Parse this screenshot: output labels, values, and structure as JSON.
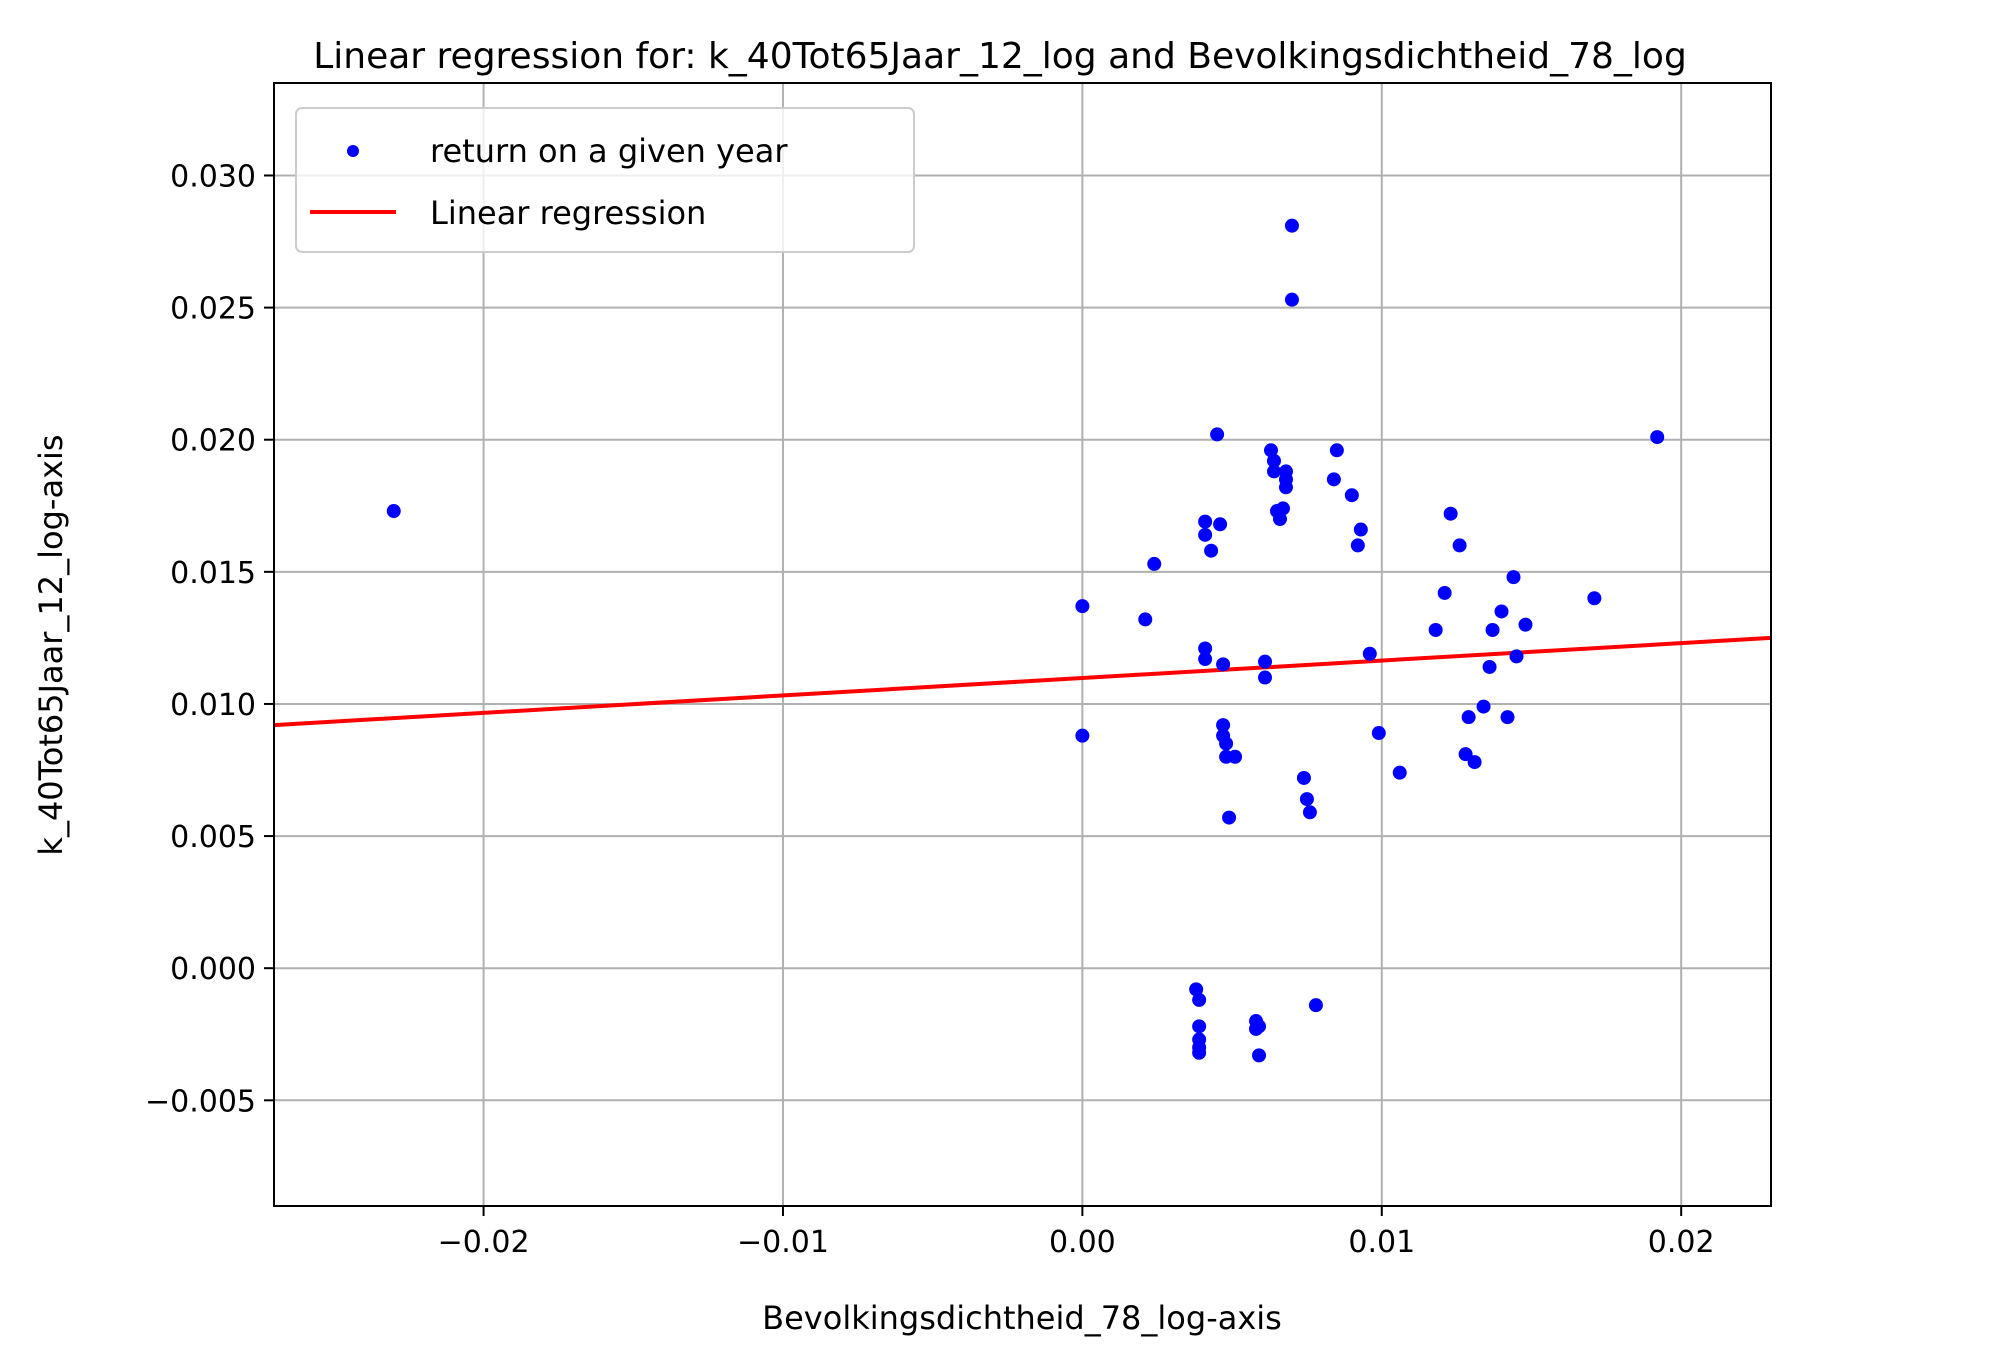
{
  "chart_data": {
    "type": "scatter",
    "title": "Linear regression for: k_40Tot65Jaar_12_log and Bevolkingsdichtheid_78_log",
    "xlabel": "Bevolkingsdichtheid_78_log-axis",
    "ylabel": "k_40Tot65Jaar_12_log-axis",
    "xlim": [
      -0.027,
      0.023
    ],
    "ylim": [
      -0.009,
      0.0335
    ],
    "xticks": [
      -0.02,
      -0.01,
      0.0,
      0.01,
      0.02
    ],
    "xtick_labels": [
      "−0.02",
      "−0.01",
      "0.00",
      "0.01",
      "0.02"
    ],
    "yticks": [
      -0.005,
      0.0,
      0.005,
      0.01,
      0.015,
      0.02,
      0.025,
      0.03
    ],
    "ytick_labels": [
      "−0.005",
      "0.000",
      "0.005",
      "0.010",
      "0.015",
      "0.020",
      "0.025",
      "0.030"
    ],
    "grid": true,
    "legend_position": "top-left",
    "legend": [
      {
        "label": "return on a given year",
        "marker": "dot",
        "color": "#0000ff"
      },
      {
        "label": "Linear regression",
        "marker": "line",
        "color": "#ff0000"
      }
    ],
    "series": [
      {
        "kind": "scatter",
        "color": "#0000ff",
        "points": [
          [
            -0.023,
            0.0173
          ],
          [
            0.0,
            0.0137
          ],
          [
            0.0,
            0.0088
          ],
          [
            0.0021,
            0.0132
          ],
          [
            0.0024,
            0.0153
          ],
          [
            0.0038,
            -0.0008
          ],
          [
            0.0039,
            -0.0012
          ],
          [
            0.0039,
            -0.0022
          ],
          [
            0.0039,
            -0.0027
          ],
          [
            0.0039,
            -0.003
          ],
          [
            0.0039,
            -0.0032
          ],
          [
            0.0041,
            0.0169
          ],
          [
            0.0041,
            0.0164
          ],
          [
            0.0041,
            0.0121
          ],
          [
            0.0041,
            0.0117
          ],
          [
            0.0043,
            0.0158
          ],
          [
            0.0045,
            0.0202
          ],
          [
            0.0046,
            0.0168
          ],
          [
            0.0047,
            0.0115
          ],
          [
            0.0047,
            0.0092
          ],
          [
            0.0047,
            0.0088
          ],
          [
            0.0048,
            0.0085
          ],
          [
            0.0048,
            0.008
          ],
          [
            0.0049,
            0.0057
          ],
          [
            0.0051,
            0.008
          ],
          [
            0.0058,
            -0.002
          ],
          [
            0.0058,
            -0.0023
          ],
          [
            0.0059,
            -0.0022
          ],
          [
            0.0059,
            -0.0033
          ],
          [
            0.0061,
            0.0116
          ],
          [
            0.0061,
            0.011
          ],
          [
            0.0063,
            0.0196
          ],
          [
            0.0064,
            0.0192
          ],
          [
            0.0064,
            0.0188
          ],
          [
            0.0065,
            0.0173
          ],
          [
            0.0066,
            0.017
          ],
          [
            0.0067,
            0.0174
          ],
          [
            0.0068,
            0.0188
          ],
          [
            0.0068,
            0.0185
          ],
          [
            0.0068,
            0.0182
          ],
          [
            0.007,
            0.0281
          ],
          [
            0.007,
            0.0253
          ],
          [
            0.0074,
            0.0072
          ],
          [
            0.0075,
            0.0064
          ],
          [
            0.0076,
            0.0059
          ],
          [
            0.0078,
            -0.0014
          ],
          [
            0.0084,
            0.0185
          ],
          [
            0.0085,
            0.0196
          ],
          [
            0.009,
            0.0179
          ],
          [
            0.0093,
            0.0166
          ],
          [
            0.0092,
            0.016
          ],
          [
            0.0096,
            0.0119
          ],
          [
            0.0099,
            0.0089
          ],
          [
            0.0106,
            0.0074
          ],
          [
            0.0118,
            0.0128
          ],
          [
            0.0121,
            0.0142
          ],
          [
            0.0123,
            0.0172
          ],
          [
            0.0126,
            0.016
          ],
          [
            0.0128,
            0.0081
          ],
          [
            0.0129,
            0.0095
          ],
          [
            0.0131,
            0.0078
          ],
          [
            0.0134,
            0.0099
          ],
          [
            0.0136,
            0.0114
          ],
          [
            0.0137,
            0.0128
          ],
          [
            0.014,
            0.0135
          ],
          [
            0.0142,
            0.0095
          ],
          [
            0.0144,
            0.0148
          ],
          [
            0.0145,
            0.0118
          ],
          [
            0.0148,
            0.013
          ],
          [
            0.0171,
            0.014
          ],
          [
            0.0192,
            0.0201
          ]
        ]
      },
      {
        "kind": "line",
        "color": "#ff0000",
        "x": [
          -0.027,
          0.023
        ],
        "y": [
          0.0092,
          0.0125
        ]
      }
    ]
  }
}
